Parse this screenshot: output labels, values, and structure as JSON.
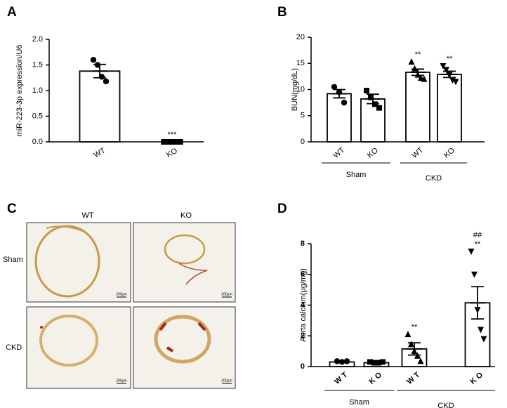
{
  "chart_data": [
    {
      "type": "bar",
      "panel_label": "A",
      "ylabel": "miR-223-3p expression/U6",
      "categories": [
        "WT",
        "KO"
      ],
      "values": [
        1.38,
        0.0
      ],
      "errors": [
        0.13,
        0.0
      ],
      "points": [
        [
          1.6,
          1.5,
          1.27,
          1.18
        ],
        [
          0.0,
          0.0,
          0.0,
          0.0
        ]
      ],
      "markers": [
        "circle",
        "square"
      ],
      "color": "#000000",
      "annotations": [
        null,
        [
          "***"
        ]
      ],
      "ylim": [
        0,
        2
      ],
      "yticks": [
        {
          "value": 0,
          "label": "0.0"
        },
        {
          "value": 0.5,
          "label": "0.5"
        },
        {
          "value": 1,
          "label": "1.0"
        },
        {
          "value": 1.5,
          "label": "1.5"
        },
        {
          "value": 2,
          "label": "2.0"
        }
      ]
    },
    {
      "type": "bar",
      "panel_label": "B",
      "ylabel": "BUN(mg/dL)",
      "categories": [
        "WT",
        "KO",
        "WT",
        "KO"
      ],
      "groups": [
        "Sham",
        "CKD"
      ],
      "values": [
        9.2,
        8.2,
        13.3,
        12.9
      ],
      "errors": [
        0.8,
        0.9,
        0.6,
        0.6
      ],
      "points": [
        [
          10.5,
          9.5,
          7.5
        ],
        [
          9.8,
          8.5,
          7.2,
          6.5
        ],
        [
          15.3,
          14.0,
          12.8,
          12.2,
          12.0
        ],
        [
          14.5,
          13.8,
          12.8,
          11.8,
          11.5
        ]
      ],
      "markers": [
        "circle",
        "square",
        "triangle",
        "triangle-down"
      ],
      "color": "#000000",
      "annotations": [
        null,
        null,
        [
          "**"
        ],
        [
          "**"
        ]
      ],
      "ylim": [
        0,
        20
      ],
      "yticks": [
        0,
        5,
        10,
        15,
        20
      ]
    },
    {
      "type": "micrograph",
      "panel_label": "C",
      "columns": [
        "WT",
        "KO"
      ],
      "rows": [
        "Sham",
        "CKD"
      ],
      "scale_bar": "200μm"
    },
    {
      "type": "bar",
      "panel_label": "D",
      "ylabel": "Aorta calcium(μg/mg)",
      "categories": [
        "WT",
        "KO",
        "WT",
        "KO"
      ],
      "groups": [
        "Sham",
        "CKD"
      ],
      "values": [
        0.3,
        0.25,
        1.15,
        4.15
      ],
      "errors": [
        0.05,
        0.05,
        0.4,
        1.05
      ],
      "points": [
        [
          0.35,
          0.3,
          0.35
        ],
        [
          0.3,
          0.25,
          0.25,
          0.3
        ],
        [
          2.1,
          1.45,
          1.0,
          0.7,
          0.35
        ],
        [
          7.5,
          6.0,
          3.7,
          2.4,
          1.8
        ]
      ],
      "markers": [
        "circle",
        "square",
        "triangle",
        "triangle-down"
      ],
      "color": "#000000",
      "annotations": [
        null,
        null,
        [
          "**"
        ],
        [
          "##",
          "**"
        ]
      ],
      "ylim": [
        0,
        8
      ],
      "yticks": [
        0,
        2,
        4,
        6,
        8
      ]
    }
  ]
}
